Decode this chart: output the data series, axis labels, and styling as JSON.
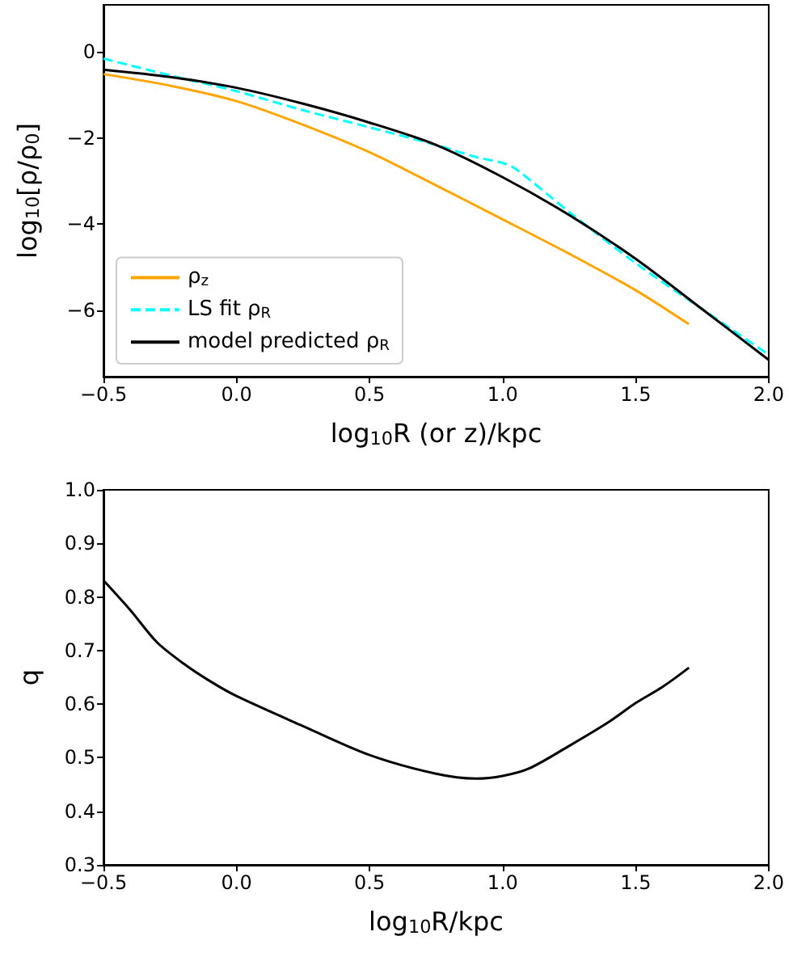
{
  "chart_data": [
    {
      "type": "line",
      "xlabel": "log$_{10}$R (or z)/kpc",
      "ylabel": "log$_{10}$[ρ/ρ$_{0}$]",
      "xlim": [
        -0.5,
        2.0
      ],
      "ylim": [
        -7.55,
        1.1
      ],
      "xticks": [
        {
          "value": -0.5,
          "label": "−0.5"
        },
        {
          "value": 0,
          "label": "0.0"
        },
        {
          "value": 0.5,
          "label": "0.5"
        },
        {
          "value": 1,
          "label": "1.0"
        },
        {
          "value": 1.5,
          "label": "1.5"
        },
        {
          "value": 2,
          "label": "2.0"
        }
      ],
      "yticks": [
        {
          "value": -6,
          "label": "−6"
        },
        {
          "value": -4,
          "label": "−4"
        },
        {
          "value": -2,
          "label": "−2"
        },
        {
          "value": 0,
          "label": "0"
        }
      ],
      "grid": false,
      "legend": "bottom left",
      "series": [
        {
          "name": "ρ$_{z}$",
          "color": "#ffa500",
          "x": [
            -0.5,
            -0.25,
            0,
            0.25,
            0.5,
            0.75,
            1.0,
            1.25,
            1.5,
            1.7
          ],
          "values": [
            -0.51,
            -0.78,
            -1.14,
            -1.69,
            -2.33,
            -3.1,
            -3.89,
            -4.69,
            -5.54,
            -6.33
          ]
        },
        {
          "name": "LS fit ρ$_{R}$",
          "color": "#00ffff",
          "line_style": "dashed",
          "x": [
            -0.5,
            -0.25,
            0,
            0.25,
            0.5,
            0.75,
            0.9,
            1.0,
            1.05,
            1.25,
            1.5,
            1.75,
            2.0
          ],
          "values": [
            -0.15,
            -0.54,
            -0.91,
            -1.35,
            -1.75,
            -2.16,
            -2.44,
            -2.58,
            -2.72,
            -3.72,
            -4.91,
            -5.98,
            -7.04
          ]
        },
        {
          "name": "model predicted ρ$_{R}$",
          "color": "#000000",
          "x": [
            -0.5,
            -0.25,
            0,
            0.25,
            0.5,
            0.75,
            1.0,
            1.25,
            1.5,
            1.75,
            2.0
          ],
          "values": [
            -0.41,
            -0.58,
            -0.83,
            -1.2,
            -1.64,
            -2.16,
            -2.91,
            -3.79,
            -4.81,
            -5.98,
            -7.16
          ]
        }
      ]
    },
    {
      "type": "line",
      "xlabel": "log$_{10}$R/kpc",
      "ylabel": "q",
      "xlim": [
        -0.5,
        2.0
      ],
      "ylim": [
        0.3,
        1.0
      ],
      "xticks": [
        {
          "value": -0.5,
          "label": "−0.5"
        },
        {
          "value": 0,
          "label": "0.0"
        },
        {
          "value": 0.5,
          "label": "0.5"
        },
        {
          "value": 1,
          "label": "1.0"
        },
        {
          "value": 1.5,
          "label": "1.5"
        },
        {
          "value": 2,
          "label": "2.0"
        }
      ],
      "yticks": [
        {
          "value": 0.3,
          "label": "0.3"
        },
        {
          "value": 0.4,
          "label": "0.4"
        },
        {
          "value": 0.5,
          "label": "0.5"
        },
        {
          "value": 0.6,
          "label": "0.6"
        },
        {
          "value": 0.7,
          "label": "0.7"
        },
        {
          "value": 0.8,
          "label": "0.8"
        },
        {
          "value": 0.9,
          "label": "0.9"
        },
        {
          "value": 1.0,
          "label": "1.0"
        }
      ],
      "grid": false,
      "series": [
        {
          "color": "#000000",
          "x": [
            -0.5,
            -0.4,
            -0.3,
            -0.2,
            -0.1,
            0,
            0.25,
            0.5,
            0.75,
            0.9,
            1.0,
            1.1,
            1.25,
            1.4,
            1.5,
            1.6,
            1.7
          ],
          "values": [
            0.831,
            0.776,
            0.716,
            0.676,
            0.643,
            0.615,
            0.559,
            0.505,
            0.47,
            0.461,
            0.466,
            0.48,
            0.522,
            0.567,
            0.602,
            0.632,
            0.668
          ]
        }
      ]
    }
  ]
}
